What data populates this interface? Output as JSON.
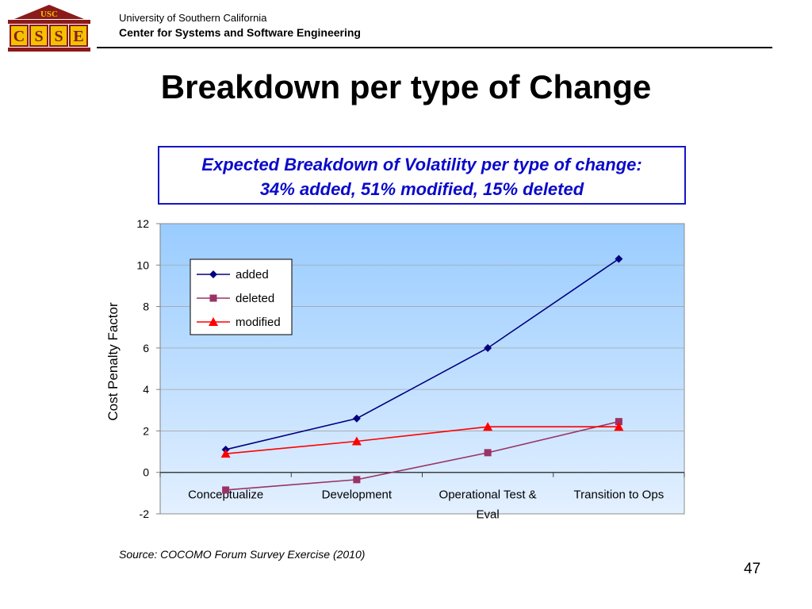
{
  "header": {
    "logo_text": "USC",
    "logo_letters": [
      "C",
      "S",
      "S",
      "E"
    ],
    "institution": "University of Southern California",
    "center": "Center for Systems and Software Engineering"
  },
  "slide_title": "Breakdown per type of Change",
  "callout": {
    "line1": "Expected Breakdown of Volatility per type of change:",
    "line2": "34% added, 51% modified, 15% deleted"
  },
  "chart_data": {
    "type": "line",
    "categories": [
      "Conceptualize",
      "Development",
      "Operational Test & Eval",
      "Transition to Ops"
    ],
    "series": [
      {
        "name": "added",
        "values": [
          1.1,
          2.6,
          6.0,
          10.3
        ],
        "color": "#000080",
        "marker": "diamond"
      },
      {
        "name": "deleted",
        "values": [
          -0.85,
          -0.35,
          0.95,
          2.45
        ],
        "color": "#993366",
        "marker": "square"
      },
      {
        "name": "modified",
        "values": [
          0.9,
          1.5,
          2.2,
          2.2
        ],
        "color": "#ff0000",
        "marker": "triangle"
      }
    ],
    "ylabel": "Cost Penalty Factor",
    "ylim": [
      -2,
      12
    ],
    "yticks": [
      -2,
      0,
      2,
      4,
      6,
      8,
      10,
      12
    ],
    "grid": true,
    "legend_position": "top-left",
    "plot_background": [
      "#99ccff",
      "#e3f0ff"
    ]
  },
  "source": "Source: COCOMO Forum Survey Exercise (2010)",
  "page_number": "47"
}
